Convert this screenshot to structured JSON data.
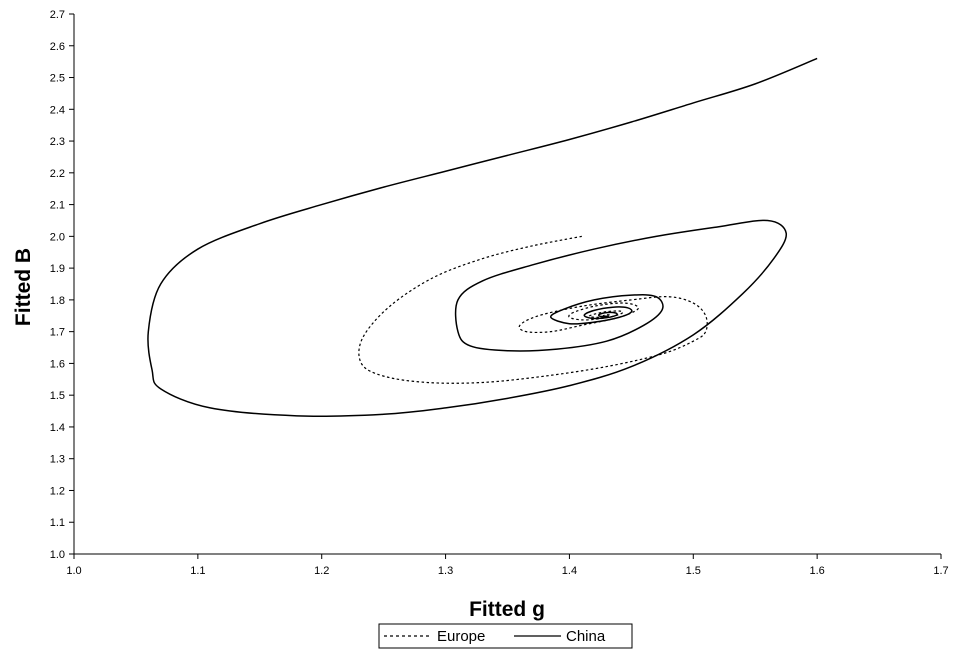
{
  "chart_data": {
    "type": "line",
    "title": "",
    "xlabel": "Fitted g",
    "ylabel": "Fitted B",
    "xlim": [
      1.0,
      1.7
    ],
    "ylim": [
      1.0,
      2.7
    ],
    "x_ticks": [
      "1.0",
      "1.1",
      "1.2",
      "1.3",
      "1.4",
      "1.5",
      "1.6",
      "1.7"
    ],
    "y_ticks": [
      "1.0",
      "1.1",
      "1.2",
      "1.3",
      "1.4",
      "1.5",
      "1.6",
      "1.7",
      "1.8",
      "1.9",
      "2.0",
      "2.1",
      "2.2",
      "2.3",
      "2.4",
      "2.5",
      "2.6",
      "2.7"
    ],
    "grid": false,
    "legend_position": "bottom-center",
    "series": [
      {
        "name": "Europe",
        "style": "dotted",
        "color": "#000000",
        "points": [
          [
            1.41,
            2.0
          ],
          [
            1.37,
            1.97
          ],
          [
            1.33,
            1.93
          ],
          [
            1.29,
            1.87
          ],
          [
            1.255,
            1.78
          ],
          [
            1.233,
            1.68
          ],
          [
            1.232,
            1.6
          ],
          [
            1.25,
            1.56
          ],
          [
            1.285,
            1.54
          ],
          [
            1.33,
            1.54
          ],
          [
            1.38,
            1.56
          ],
          [
            1.43,
            1.59
          ],
          [
            1.475,
            1.63
          ],
          [
            1.5,
            1.67
          ],
          [
            1.51,
            1.7
          ],
          [
            1.51,
            1.75
          ],
          [
            1.5,
            1.79
          ],
          [
            1.48,
            1.81
          ],
          [
            1.45,
            1.8
          ],
          [
            1.41,
            1.78
          ],
          [
            1.375,
            1.75
          ],
          [
            1.36,
            1.72
          ],
          [
            1.365,
            1.7
          ],
          [
            1.385,
            1.7
          ],
          [
            1.41,
            1.72
          ],
          [
            1.44,
            1.745
          ],
          [
            1.455,
            1.77
          ],
          [
            1.452,
            1.785
          ],
          [
            1.44,
            1.79
          ],
          [
            1.42,
            1.78
          ],
          [
            1.403,
            1.76
          ],
          [
            1.4,
            1.745
          ],
          [
            1.41,
            1.737
          ],
          [
            1.423,
            1.74
          ],
          [
            1.437,
            1.75
          ],
          [
            1.443,
            1.76
          ],
          [
            1.44,
            1.765
          ],
          [
            1.43,
            1.763
          ],
          [
            1.42,
            1.755
          ],
          [
            1.416,
            1.748
          ],
          [
            1.422,
            1.745
          ],
          [
            1.43,
            1.748
          ],
          [
            1.433,
            1.752
          ],
          [
            1.43,
            1.753
          ],
          [
            1.427,
            1.75
          ]
        ]
      },
      {
        "name": "China",
        "style": "solid",
        "color": "#000000",
        "points": [
          [
            1.6,
            2.56
          ],
          [
            1.55,
            2.48
          ],
          [
            1.5,
            2.42
          ],
          [
            1.45,
            2.36
          ],
          [
            1.4,
            2.305
          ],
          [
            1.35,
            2.255
          ],
          [
            1.3,
            2.205
          ],
          [
            1.25,
            2.155
          ],
          [
            1.2,
            2.1
          ],
          [
            1.15,
            2.04
          ],
          [
            1.1,
            1.96
          ],
          [
            1.07,
            1.85
          ],
          [
            1.06,
            1.7
          ],
          [
            1.063,
            1.58
          ],
          [
            1.07,
            1.52
          ],
          [
            1.11,
            1.46
          ],
          [
            1.18,
            1.435
          ],
          [
            1.25,
            1.44
          ],
          [
            1.3,
            1.46
          ],
          [
            1.35,
            1.49
          ],
          [
            1.4,
            1.53
          ],
          [
            1.45,
            1.59
          ],
          [
            1.5,
            1.69
          ],
          [
            1.54,
            1.82
          ],
          [
            1.565,
            1.93
          ],
          [
            1.575,
            2.01
          ],
          [
            1.56,
            2.05
          ],
          [
            1.52,
            2.03
          ],
          [
            1.47,
            2.0
          ],
          [
            1.42,
            1.96
          ],
          [
            1.37,
            1.91
          ],
          [
            1.33,
            1.86
          ],
          [
            1.31,
            1.8
          ],
          [
            1.31,
            1.7
          ],
          [
            1.32,
            1.655
          ],
          [
            1.35,
            1.64
          ],
          [
            1.39,
            1.645
          ],
          [
            1.43,
            1.67
          ],
          [
            1.46,
            1.72
          ],
          [
            1.475,
            1.77
          ],
          [
            1.47,
            1.81
          ],
          [
            1.45,
            1.815
          ],
          [
            1.42,
            1.8
          ],
          [
            1.395,
            1.77
          ],
          [
            1.385,
            1.745
          ],
          [
            1.4,
            1.725
          ],
          [
            1.42,
            1.73
          ],
          [
            1.44,
            1.745
          ],
          [
            1.45,
            1.762
          ],
          [
            1.447,
            1.775
          ],
          [
            1.435,
            1.777
          ],
          [
            1.42,
            1.767
          ],
          [
            1.412,
            1.752
          ],
          [
            1.418,
            1.742
          ],
          [
            1.43,
            1.744
          ],
          [
            1.438,
            1.752
          ],
          [
            1.437,
            1.759
          ],
          [
            1.43,
            1.76
          ],
          [
            1.424,
            1.754
          ],
          [
            1.425,
            1.748
          ],
          [
            1.43,
            1.749
          ]
        ]
      }
    ]
  }
}
